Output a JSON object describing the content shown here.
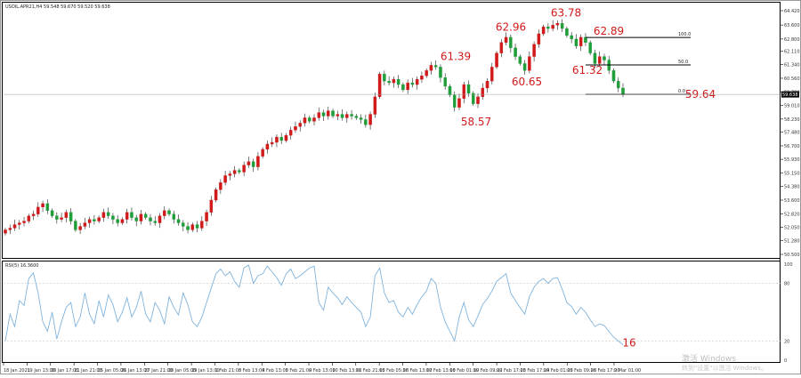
{
  "main_header": "USOIL.APR21,H4   59.548 59.670 59.520 59.638",
  "rsi_header": "RSI(5) 16.3600",
  "watermark": {
    "title": "激活 Windows",
    "subtitle": "转到\"设置\"以激活 Windows。"
  },
  "colors": {
    "up": "#d11a1a",
    "down": "#1f9e3a",
    "rsi": "#7fb3dd",
    "annotation": "#d11a1a",
    "fib": "#000000",
    "grid": "#c8c8c8"
  },
  "chart_data": [
    {
      "type": "candlestick",
      "symbol": "USOIL.APR21",
      "timeframe": "H4",
      "ohlc_header": {
        "open": 59.548,
        "high": 59.67,
        "low": 59.52,
        "close": 59.638
      },
      "current_price": "59.638",
      "y_ticks": [
        "64.420",
        "63.600",
        "62.800",
        "62.110",
        "61.340",
        "60.560",
        "59.780",
        "59.010",
        "58.230",
        "57.480",
        "56.700",
        "55.930",
        "55.150",
        "54.380",
        "53.600",
        "52.820",
        "52.050",
        "51.280",
        "50.500"
      ],
      "ylim": [
        50.5,
        64.42
      ],
      "x_ticks": [
        "18 Jan 2021",
        "19 Jan 13:00",
        "20 Jan 17:00",
        "21 Jan 21:00",
        "25 Jan 05:00",
        "26 Jan 13:00",
        "27 Jan 21:00",
        "28 Jan 05:00",
        "29 Jan 13:00",
        "1 Feb 21:00",
        "3 Feb 13:00",
        "4 Feb 13:00",
        "5 Feb 21:00",
        "9 Feb 13:00",
        "10 Feb 13:00",
        "11 Feb 21:00",
        "15 Feb 05:00",
        "16 Feb 13:00",
        "17 Feb 13:00",
        "18 Feb 01:00",
        "19 Feb 09:00",
        "22 Feb 17:00",
        "23 Feb 17:00",
        "24 Feb 01:00",
        "25 Feb 09:00",
        "26 Feb 17:00",
        "2 Mar 01:00"
      ],
      "closes": [
        51.9,
        52.0,
        52.2,
        52.3,
        52.4,
        52.7,
        52.8,
        53.2,
        53.4,
        53.0,
        52.7,
        52.5,
        52.6,
        52.9,
        52.4,
        51.9,
        52.1,
        52.3,
        52.5,
        52.4,
        52.6,
        52.9,
        52.7,
        52.5,
        52.3,
        52.5,
        52.9,
        52.6,
        52.4,
        52.8,
        52.6,
        52.4,
        52.3,
        52.7,
        53.0,
        52.8,
        52.5,
        52.3,
        52.1,
        51.9,
        52.2,
        52.0,
        52.4,
        52.9,
        53.6,
        54.2,
        54.6,
        55.0,
        55.1,
        55.3,
        55.2,
        55.6,
        55.8,
        55.5,
        56.1,
        56.5,
        56.8,
        56.9,
        57.2,
        57.0,
        57.3,
        57.6,
        57.8,
        58.0,
        58.3,
        58.1,
        58.3,
        58.6,
        58.4,
        58.7,
        58.4,
        58.5,
        58.3,
        58.5,
        58.4,
        58.3,
        58.2,
        57.9,
        58.5,
        59.5,
        60.8,
        60.4,
        60.3,
        60.5,
        60.2,
        59.9,
        60.3,
        60.2,
        60.5,
        60.7,
        61.0,
        61.3,
        61.2,
        60.6,
        60.1,
        59.6,
        58.9,
        59.4,
        60.2,
        59.7,
        59.1,
        59.5,
        60.0,
        60.4,
        61.2,
        62.0,
        62.6,
        62.9,
        62.3,
        61.8,
        61.4,
        61.0,
        61.8,
        62.5,
        63.1,
        63.5,
        63.4,
        63.6,
        63.7,
        63.4,
        63.0,
        62.8,
        62.4,
        62.9,
        62.6,
        62.0,
        61.4,
        61.8,
        61.6,
        61.0,
        60.4,
        60.0,
        59.64
      ],
      "annotations": [
        {
          "label": "61.39",
          "price": 61.39
        },
        {
          "label": "62.96",
          "price": 62.96
        },
        {
          "label": "63.78",
          "price": 63.78
        },
        {
          "label": "62.89",
          "price": 62.89
        },
        {
          "label": "60.65",
          "price": 60.65
        },
        {
          "label": "61.32",
          "price": 61.32
        },
        {
          "label": "58.57",
          "price": 58.57
        },
        {
          "label": "59.64",
          "price": 59.64
        }
      ],
      "fibonacci": [
        {
          "label": "100.0",
          "price": 62.89
        },
        {
          "label": "50.0",
          "price": 61.32
        },
        {
          "label": "0.0",
          "price": 59.64
        }
      ]
    },
    {
      "type": "line",
      "name": "RSI(5)",
      "value_label": "16.3600",
      "y_ticks": [
        "100",
        "80",
        "20",
        "0"
      ],
      "ylim": [
        0,
        100
      ],
      "levels": [
        80,
        20
      ],
      "annotation": {
        "label": "16",
        "value": 16
      },
      "values": [
        20,
        48,
        35,
        62,
        57,
        85,
        91,
        70,
        40,
        30,
        50,
        22,
        40,
        55,
        60,
        35,
        45,
        70,
        48,
        38,
        62,
        45,
        68,
        58,
        40,
        50,
        65,
        45,
        55,
        72,
        48,
        40,
        60,
        52,
        38,
        66,
        55,
        47,
        70,
        58,
        40,
        35,
        45,
        60,
        75,
        90,
        95,
        88,
        92,
        82,
        76,
        96,
        99,
        80,
        88,
        90,
        98,
        92,
        86,
        78,
        90,
        95,
        85,
        88,
        92,
        96,
        98,
        60,
        52,
        76,
        70,
        65,
        58,
        66,
        60,
        55,
        50,
        35,
        45,
        88,
        96,
        70,
        60,
        62,
        50,
        45,
        55,
        48,
        58,
        66,
        72,
        85,
        80,
        55,
        40,
        30,
        20,
        45,
        60,
        42,
        35,
        46,
        58,
        64,
        72,
        82,
        86,
        90,
        70,
        62,
        55,
        48,
        66,
        76,
        82,
        85,
        80,
        85,
        86,
        74,
        60,
        56,
        48,
        55,
        50,
        42,
        35,
        38,
        36,
        30,
        24,
        20,
        16
      ]
    }
  ]
}
